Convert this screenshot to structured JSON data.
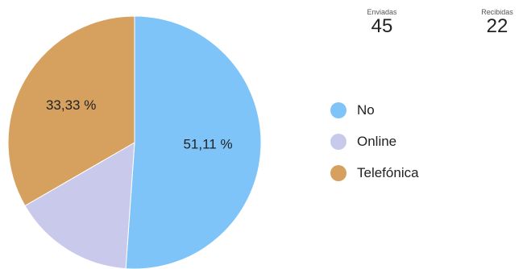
{
  "stats": {
    "sent": {
      "label": "Enviadas",
      "value": "45"
    },
    "received": {
      "label": "Recibidas",
      "value": "22"
    }
  },
  "chart_data": {
    "type": "pie",
    "categories": [
      "No",
      "Online",
      "Telefónica"
    ],
    "values": [
      51.11,
      15.56,
      33.33
    ],
    "data_labels": [
      "51,11 %",
      "",
      "33,33 %"
    ],
    "colors": [
      "#7fc4f8",
      "#c9c9ec",
      "#d6a15f"
    ],
    "legend": "right",
    "title": ""
  }
}
